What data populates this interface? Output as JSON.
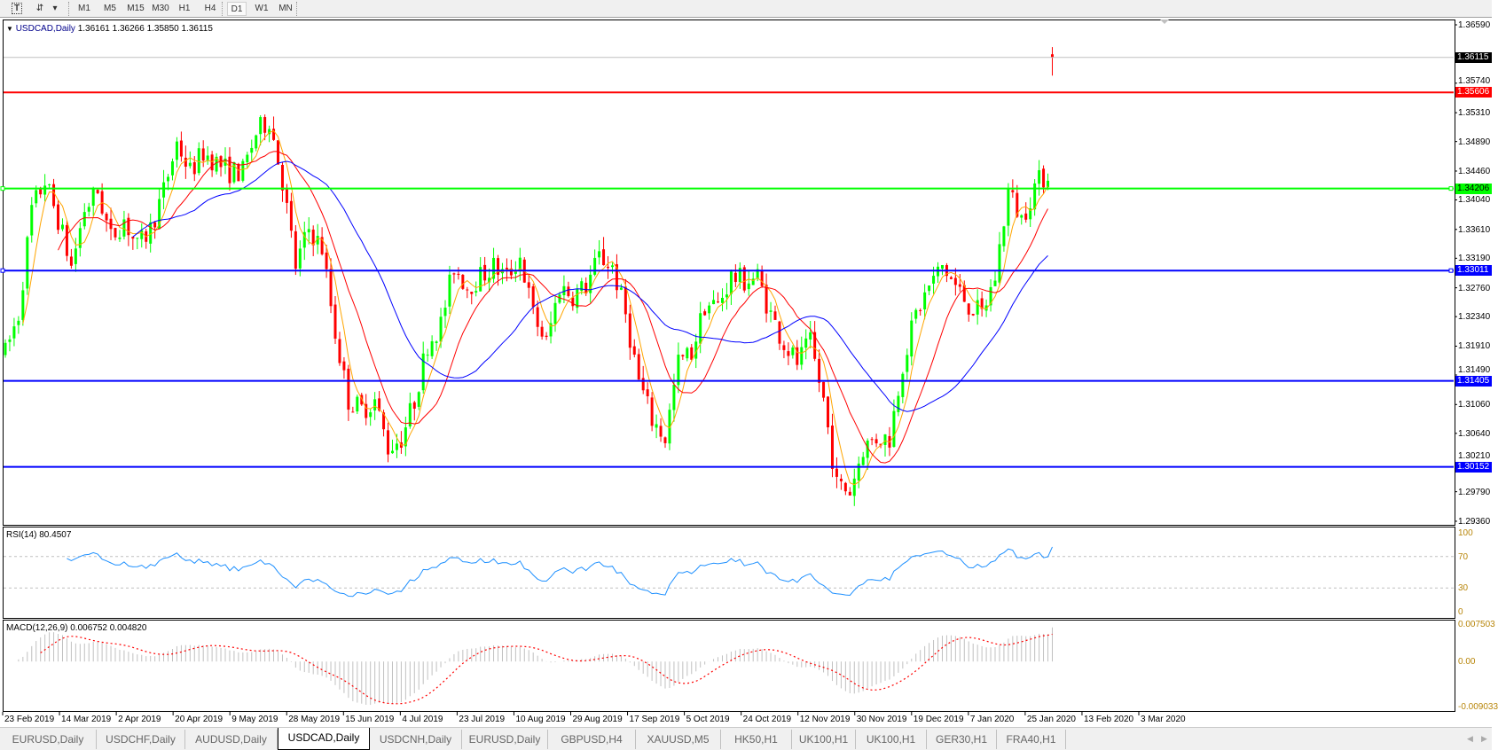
{
  "toolbar": {
    "icons": [
      "text-tool-icon",
      "arrows-tool-icon",
      "dropdown-caret-icon"
    ],
    "timeframes": [
      "M1",
      "M5",
      "M15",
      "M30",
      "H1",
      "H4",
      "D1",
      "W1",
      "MN"
    ],
    "active_timeframe": "D1"
  },
  "main": {
    "symbol_label": "USDCAD,Daily",
    "ohlc_text": "1.36161 1.36266 1.35850 1.36115",
    "price_ticks": [
      "1.36590",
      "1.35740",
      "1.35310",
      "1.34890",
      "1.34460",
      "1.34040",
      "1.33610",
      "1.33190",
      "1.32760",
      "1.32340",
      "1.31910",
      "1.31490",
      "1.31060",
      "1.30640",
      "1.30210",
      "1.29790",
      "1.29360"
    ],
    "bid_label": "1.36115",
    "levels": [
      {
        "price": "1.35606",
        "color": "#ff0000"
      },
      {
        "price": "1.34206",
        "color": "#00ff00"
      },
      {
        "price": "1.33011",
        "color": "#0000ff"
      },
      {
        "price": "1.31405",
        "color": "#0000ff"
      },
      {
        "price": "1.30152",
        "color": "#0000ff"
      }
    ]
  },
  "rsi": {
    "label": "RSI(14) 80.4507",
    "ticks": [
      "100",
      "70",
      "30",
      "0"
    ],
    "color": "#1e90ff"
  },
  "macd": {
    "label": "MACD(12,26,9) 0.006752 0.004820",
    "ticks": [
      "0.007503",
      "0.00",
      "-0.009033"
    ],
    "histogram_color": "#c0c0c0",
    "signal_color": "#ff0000"
  },
  "date_labels": [
    "23 Feb 2019",
    "14 Mar 2019",
    "2 Apr 2019",
    "20 Apr 2019",
    "9 May 2019",
    "28 May 2019",
    "15 Jun 2019",
    "4 Jul 2019",
    "23 Jul 2019",
    "10 Aug 2019",
    "29 Aug 2019",
    "17 Sep 2019",
    "5 Oct 2019",
    "24 Oct 2019",
    "12 Nov 2019",
    "30 Nov 2019",
    "19 Dec 2019",
    "7 Jan 2020",
    "25 Jan 2020",
    "13 Feb 2020",
    "3 Mar 2020"
  ],
  "tabs": [
    "EURUSD,Daily",
    "USDCHF,Daily",
    "AUDUSD,Daily",
    "USDCAD,Daily",
    "USDCNH,Daily",
    "EURUSD,Daily",
    "GBPUSD,H4",
    "XAUUSD,M5",
    "HK50,H1",
    "UK100,H1",
    "UK100,H1",
    "GER30,H1",
    "FRA40,H1"
  ],
  "active_tab": "USDCAD,Daily",
  "chart_data": {
    "type": "candlestick",
    "symbol": "USDCAD",
    "timeframe": "Daily",
    "close_samples_every_3_bars": [
      1.3181,
      1.3237,
      1.339,
      1.3432,
      1.3376,
      1.3307,
      1.339,
      1.3417,
      1.3348,
      1.3376,
      1.3334,
      1.3362,
      1.3417,
      1.3487,
      1.3445,
      1.3473,
      1.3459,
      1.3445,
      1.3445,
      1.3501,
      1.3522,
      1.3432,
      1.3307,
      1.3362,
      1.3334,
      1.321,
      1.3112,
      1.3099,
      1.3112,
      1.3043,
      1.3057,
      1.3112,
      1.3195,
      1.3223,
      1.3307,
      1.3278,
      1.3292,
      1.3307,
      1.3292,
      1.3321,
      1.3237,
      1.3195,
      1.3278,
      1.3265,
      1.3278,
      1.3321,
      1.3307,
      1.3237,
      1.314,
      1.3084,
      1.3057,
      1.3167,
      1.3181,
      1.3251,
      1.3251,
      1.3292,
      1.3286,
      1.3292,
      1.3237,
      1.3195,
      1.3167,
      1.3195,
      1.3112,
      1.2988,
      1.298,
      1.3043,
      1.3057,
      1.3057,
      1.3167,
      1.3237,
      1.3278,
      1.3307,
      1.3278,
      1.3251,
      1.3237,
      1.3292,
      1.3417,
      1.3376,
      1.3424,
      1.3445
    ],
    "last_bar": {
      "open": 1.36161,
      "high": 1.36266,
      "low": 1.3585,
      "close": 1.36115
    },
    "moving_averages": [
      {
        "color": "#ffa500"
      },
      {
        "color": "#ff0000"
      },
      {
        "color": "#0000ff"
      }
    ],
    "up_color": "#00ff00",
    "down_color": "#ff0000",
    "price_range": [
      1.2936,
      1.3659
    ]
  }
}
